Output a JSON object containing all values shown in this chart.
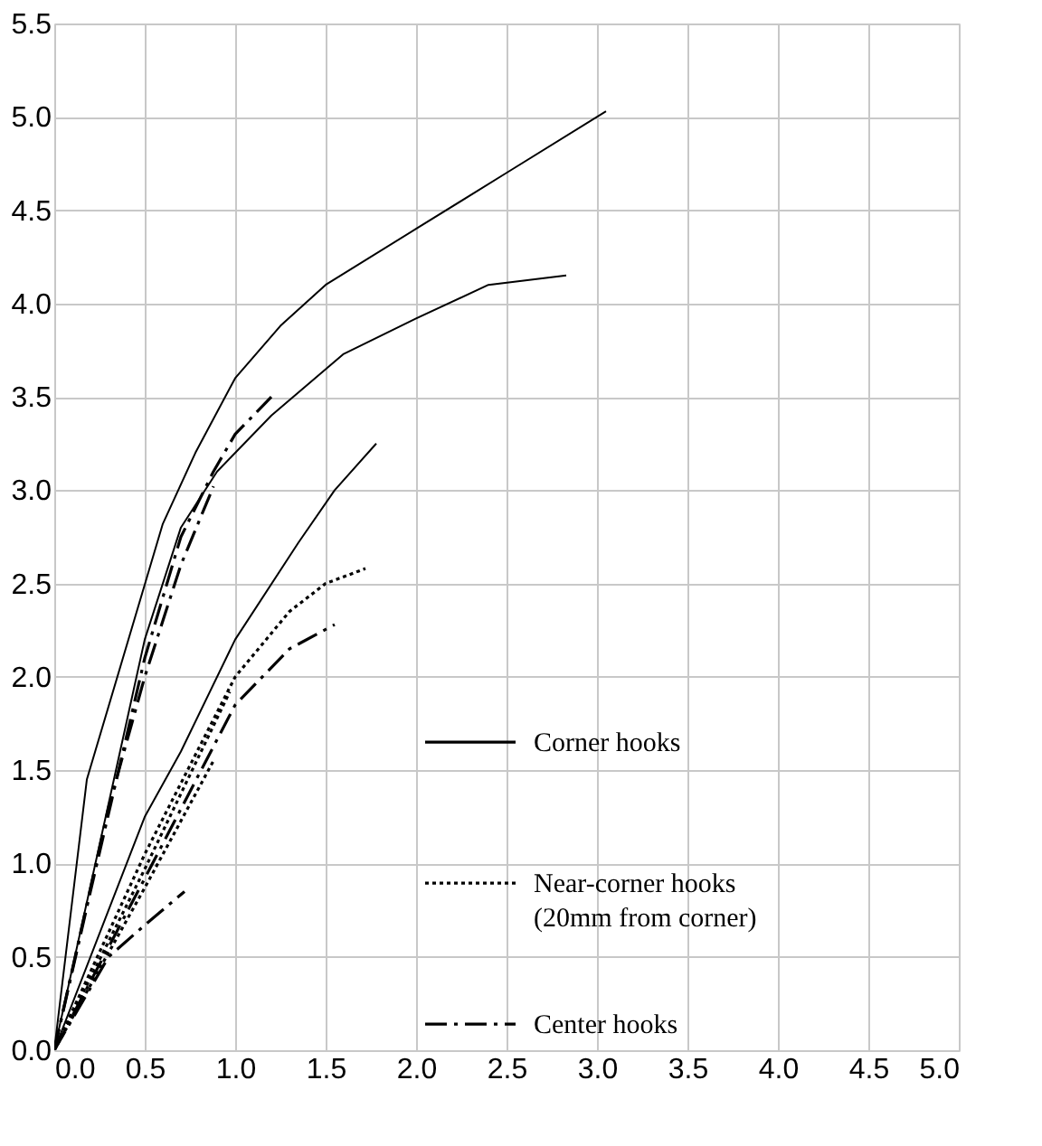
{
  "chart_data": {
    "type": "line",
    "grid": true,
    "legend": "bottom right",
    "xlim": [
      0,
      5.0
    ],
    "ylim": [
      0,
      5.5
    ],
    "xticks": [
      {
        "value": 0,
        "label": "0.0"
      },
      0.5,
      {
        "value": 1,
        "label": "1.0"
      },
      1.5,
      {
        "value": 2,
        "label": "2.0"
      },
      2.5,
      {
        "value": 3,
        "label": "3.0"
      },
      3.5,
      {
        "value": 4,
        "label": "4.0"
      },
      4.5,
      {
        "value": 5,
        "label": "5.0"
      }
    ],
    "yticks": [
      {
        "value": 0,
        "label": "0.0"
      },
      0.5,
      {
        "value": 1,
        "label": "1.0"
      },
      1.5,
      {
        "value": 2,
        "label": "2.0"
      },
      2.5,
      {
        "value": 3,
        "label": "3.0"
      },
      3.5,
      {
        "value": 4,
        "label": "4.0"
      },
      4.5,
      {
        "value": 5,
        "label": "5.0"
      },
      5.5
    ],
    "series": [
      {
        "name": "Corner hooks",
        "color": "#000000",
        "line_style": "solid",
        "x": [
          0,
          0.18,
          0.6,
          0.78,
          1.0,
          1.25,
          1.5,
          2.0,
          2.5,
          3.05
        ],
        "values": [
          0,
          1.45,
          2.82,
          3.2,
          3.6,
          3.88,
          4.1,
          4.4,
          4.7,
          5.03
        ]
      },
      {
        "color": "#000000",
        "line_style": "solid",
        "x": [
          0,
          0.5,
          0.7,
          0.9,
          1.2,
          1.6,
          2.0,
          2.4,
          2.83
        ],
        "values": [
          0,
          2.2,
          2.8,
          3.1,
          3.4,
          3.73,
          3.92,
          4.1,
          4.15
        ]
      },
      {
        "color": "#000000",
        "line_style": "solid",
        "x": [
          0,
          0.5,
          0.7,
          1.0,
          1.35,
          1.55,
          1.78
        ],
        "values": [
          0,
          1.25,
          1.6,
          2.2,
          2.72,
          3.0,
          3.25
        ]
      },
      {
        "name": "Near-corner hooks\n(20mm from corner)",
        "color": "#000000",
        "line_style": "dotted",
        "x": [
          0,
          0.5,
          1.0,
          1.3,
          1.5,
          1.72
        ],
        "values": [
          0,
          1.05,
          2.0,
          2.35,
          2.5,
          2.58
        ]
      },
      {
        "color": "#000000",
        "line_style": "dotted",
        "x": [
          0,
          0.5,
          0.97
        ],
        "values": [
          0,
          0.97,
          1.92
        ]
      },
      {
        "color": "#000000",
        "line_style": "dotted",
        "x": [
          0,
          0.5,
          0.88
        ],
        "values": [
          0,
          0.87,
          1.55
        ]
      },
      {
        "name": "Center hooks",
        "color": "#000000",
        "line_style": "dashed",
        "x": [
          0,
          0.2,
          0.5,
          0.7,
          0.88,
          1.0,
          1.2
        ],
        "values": [
          0,
          0.85,
          2.1,
          2.75,
          3.1,
          3.3,
          3.5
        ]
      },
      {
        "color": "#000000",
        "line_style": "dashed",
        "x": [
          0,
          0.3,
          0.5,
          0.7,
          0.88
        ],
        "values": [
          0,
          1.3,
          2.0,
          2.6,
          3.02
        ]
      },
      {
        "color": "#000000",
        "line_style": "dashed",
        "x": [
          0,
          0.5,
          1.0,
          1.3,
          1.55
        ],
        "values": [
          0,
          0.92,
          1.85,
          2.15,
          2.28
        ]
      },
      {
        "color": "#000000",
        "line_style": "dashed",
        "x": [
          0,
          0.3,
          0.5,
          0.72
        ],
        "values": [
          0,
          0.5,
          0.67,
          0.85
        ]
      }
    ]
  }
}
